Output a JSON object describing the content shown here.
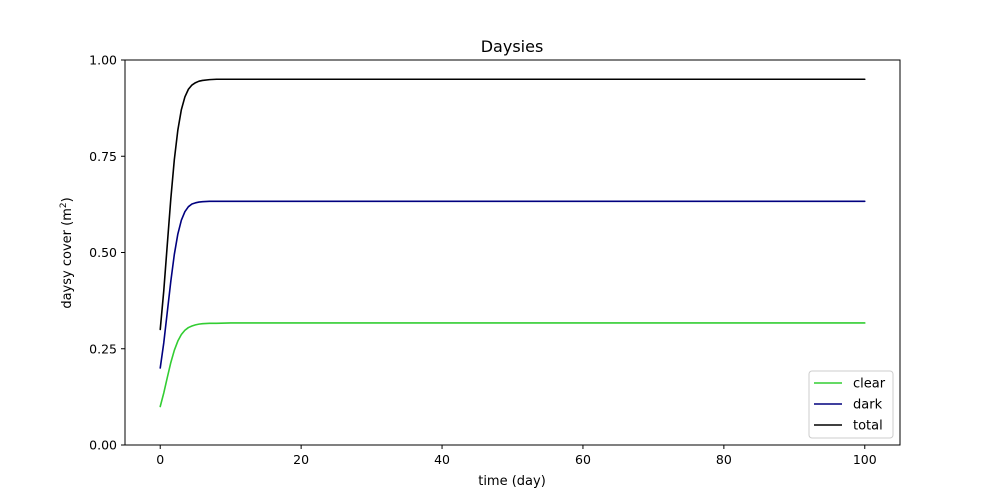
{
  "chart_data": {
    "type": "line",
    "title": "Daysies",
    "xlabel": "time (day)",
    "ylabel": "daysy cover (m",
    "ylabel_sup": "2",
    "ylabel_end": ")",
    "xlim": [
      -5,
      105
    ],
    "ylim": [
      0,
      1
    ],
    "xticks": [
      0,
      20,
      40,
      60,
      80,
      100
    ],
    "xtick_labels": [
      "0",
      "20",
      "40",
      "60",
      "80",
      "100"
    ],
    "yticks": [
      0,
      0.25,
      0.5,
      0.75,
      1.0
    ],
    "ytick_labels": [
      "0.00",
      "0.25",
      "0.50",
      "0.75",
      "1.00"
    ],
    "grid": false,
    "legend_position": "lower-right",
    "x": [
      0,
      0.5,
      1,
      1.5,
      2,
      2.5,
      3,
      3.5,
      4,
      4.5,
      5,
      5.5,
      6,
      7,
      8,
      10,
      15,
      20,
      30,
      40,
      50,
      60,
      70,
      80,
      90,
      100
    ],
    "series": [
      {
        "name": "clear",
        "color": "#32cd32",
        "values": [
          0.1,
          0.135,
          0.175,
          0.214,
          0.246,
          0.27,
          0.287,
          0.298,
          0.305,
          0.309,
          0.312,
          0.314,
          0.315,
          0.316,
          0.316,
          0.317,
          0.317,
          0.317,
          0.317,
          0.317,
          0.317,
          0.317,
          0.317,
          0.317,
          0.317,
          0.317
        ]
      },
      {
        "name": "dark",
        "color": "#00007f",
        "values": [
          0.2,
          0.265,
          0.345,
          0.425,
          0.495,
          0.548,
          0.584,
          0.606,
          0.619,
          0.626,
          0.629,
          0.631,
          0.632,
          0.633,
          0.633,
          0.633,
          0.633,
          0.633,
          0.633,
          0.633,
          0.633,
          0.633,
          0.633,
          0.633,
          0.633,
          0.633
        ]
      },
      {
        "name": "total",
        "color": "#000000",
        "values": [
          0.3,
          0.4,
          0.52,
          0.639,
          0.741,
          0.818,
          0.871,
          0.904,
          0.924,
          0.935,
          0.941,
          0.945,
          0.947,
          0.949,
          0.95,
          0.95,
          0.95,
          0.95,
          0.95,
          0.95,
          0.95,
          0.95,
          0.95,
          0.95,
          0.95,
          0.95
        ]
      }
    ]
  }
}
